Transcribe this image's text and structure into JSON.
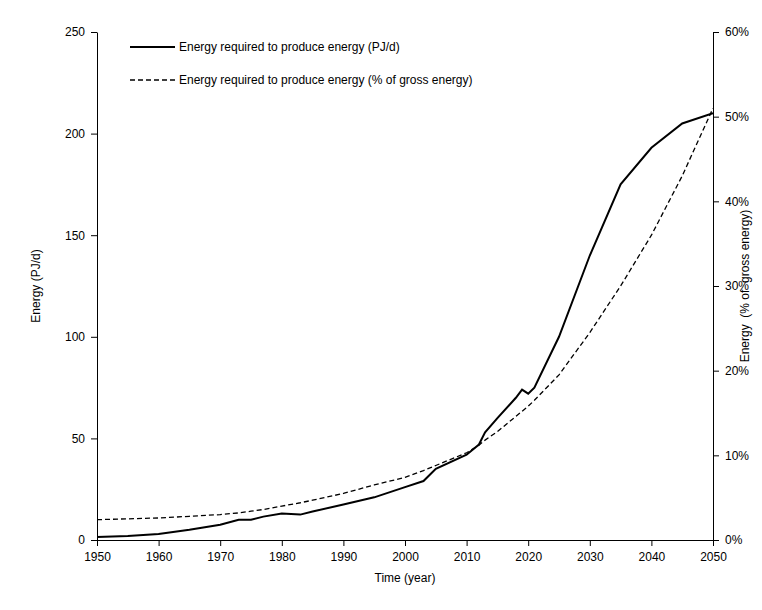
{
  "chart_data": {
    "type": "line",
    "x_label": "Time (year)",
    "y_label": "Energy (PJ/d)",
    "y2_label": "Energy  (% of  gross energy)",
    "x": [
      1950,
      1955,
      1960,
      1965,
      1970,
      1973,
      1975,
      1977,
      1980,
      1983,
      1985,
      1990,
      1995,
      2000,
      2003,
      2005,
      2010,
      2012,
      2013,
      2015,
      2018,
      2019,
      2020,
      2021,
      2025,
      2030,
      2035,
      2040,
      2045,
      2050
    ],
    "series": [
      {
        "name": "Energy required to produce energy (PJ/d)",
        "color": "#000000",
        "line_style": "solid",
        "values": [
          1.5,
          2,
          3,
          5,
          7.5,
          10,
          10,
          11.5,
          13,
          12.5,
          14,
          17.5,
          21,
          26,
          29,
          35,
          42,
          47,
          53,
          60,
          70,
          74,
          72,
          75,
          100,
          140,
          175,
          193,
          205,
          210
        ]
      },
      {
        "name": "Energy required to produce energy (% of gross energy)",
        "color": "#000000",
        "line_style": "dashed",
        "axis": "y2",
        "values": [
          2.4,
          2.5,
          2.6,
          2.8,
          3.0,
          3.2,
          3.4,
          3.6,
          4.0,
          4.4,
          4.7,
          5.5,
          6.5,
          7.4,
          8.2,
          8.8,
          10.3,
          11.2,
          11.8,
          12.8,
          14.6,
          15.2,
          15.8,
          16.5,
          19.5,
          24.5,
          30,
          36,
          43,
          51
        ]
      }
    ],
    "xlim": [
      1950,
      2050
    ],
    "xticks": [
      1950,
      1960,
      1970,
      1980,
      1990,
      2000,
      2010,
      2020,
      2030,
      2040,
      2050
    ],
    "ylim": [
      0,
      250
    ],
    "yticks": [
      0,
      50,
      100,
      150,
      200,
      250
    ],
    "y2lim": [
      0,
      60
    ],
    "y2ticks": [
      {
        "value": 0,
        "label": "0%"
      },
      {
        "value": 10,
        "label": "10%"
      },
      {
        "value": 20,
        "label": "20%"
      },
      {
        "value": 30,
        "label": "30%"
      },
      {
        "value": 40,
        "label": "40%"
      },
      {
        "value": 50,
        "label": "50%"
      },
      {
        "value": 60,
        "label": "60%"
      }
    ],
    "legend": "top-left",
    "grid": false
  }
}
